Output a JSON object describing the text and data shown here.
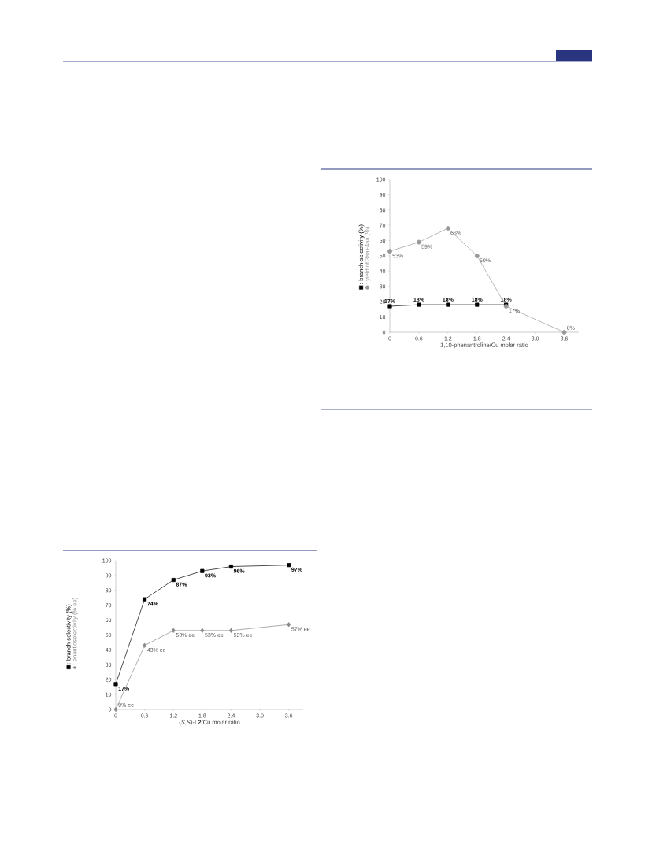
{
  "chart_data": [
    {
      "type": "line",
      "xlabel": "1,10-phenantroline/Cu molar ratio",
      "xlim": [
        0,
        3.9
      ],
      "ylim": [
        0,
        100
      ],
      "xticks": [
        0,
        0.6,
        1.2,
        1.8,
        2.4,
        {
          "value": 3,
          "label": "3.0"
        },
        3.6
      ],
      "yticks": [
        0,
        10,
        20,
        30,
        40,
        50,
        60,
        70,
        80,
        90,
        100
      ],
      "legend": "left",
      "grid": false,
      "series": [
        {
          "name": ": branch-selectivity (%)",
          "color": "#000000",
          "marker": "square",
          "x": [
            0,
            0.6,
            1.2,
            1.8,
            2.4
          ],
          "values": [
            17,
            18,
            18,
            18,
            18
          ],
          "value_labels": [
            "17%",
            "18%",
            "18%",
            "18%",
            "18%"
          ]
        },
        {
          "name": ": yield of 3aa+4aa (%)",
          "color": "#999999",
          "marker": "circle",
          "x": [
            0,
            0.6,
            1.2,
            1.8,
            2.4,
            3.6
          ],
          "values": [
            53,
            59,
            68,
            50,
            17,
            0
          ],
          "value_labels": [
            "53%",
            "59%",
            "68%",
            "50%",
            "17%",
            "0%"
          ]
        }
      ]
    },
    {
      "type": "line",
      "xlabel": "(*S*,*S*)-**L2**/Cu molar ratio",
      "xlim": [
        0,
        3.9
      ],
      "ylim": [
        0,
        100
      ],
      "xticks": [
        0,
        0.6,
        1.2,
        1.8,
        2.4,
        {
          "value": 3,
          "label": "3.0"
        },
        3.6
      ],
      "yticks": [
        0,
        10,
        20,
        30,
        40,
        50,
        60,
        70,
        80,
        90,
        100
      ],
      "legend": "left",
      "grid": false,
      "series": [
        {
          "name": ": branch-selectivity (%)",
          "color": "#000000",
          "marker": "square",
          "x": [
            0,
            0.6,
            1.2,
            1.8,
            2.4,
            3.6
          ],
          "values": [
            17,
            74,
            87,
            93,
            96,
            97
          ],
          "value_labels": [
            "17%",
            "74%",
            "87%",
            "93%",
            "96%",
            "97%"
          ]
        },
        {
          "name": ": enantioselectivity (% ee)",
          "color": "#888888",
          "marker": "diamond",
          "x": [
            0,
            0.6,
            1.2,
            1.8,
            2.4,
            3.6
          ],
          "values": [
            0,
            43,
            53,
            53,
            53,
            57
          ],
          "value_labels": [
            "0% ee",
            "43% ee",
            "53% ee",
            "53% ee",
            "53% ee",
            "57% ee"
          ]
        }
      ]
    }
  ]
}
